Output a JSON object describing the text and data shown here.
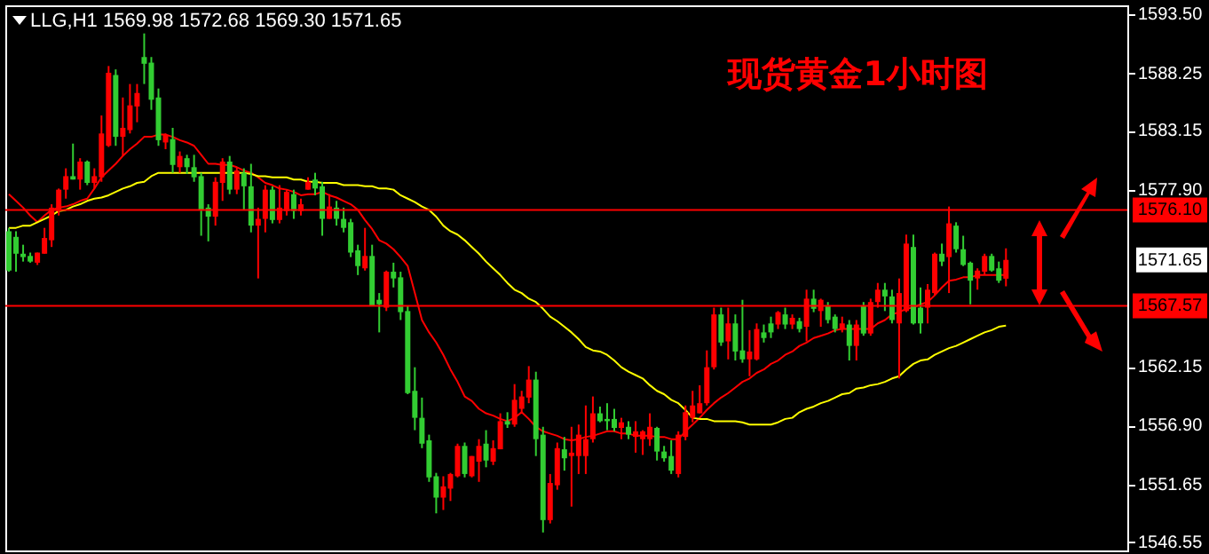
{
  "chart_data": {
    "type": "candlestick",
    "title": "现货黄金1小时图",
    "annotations": [
      "LLG,H1  1569.98 1572.68 1569.30 1571.65",
      "1571.65"
    ],
    "categories": [
      null,
      null,
      null,
      null,
      null,
      null,
      null,
      null,
      null,
      null,
      null,
      null,
      null,
      null,
      null,
      null,
      null,
      null,
      null,
      null,
      null,
      null,
      null,
      null,
      null,
      null,
      null,
      null,
      null,
      null,
      null,
      null,
      null,
      null,
      null,
      null,
      null,
      null,
      null,
      null,
      null,
      null,
      null,
      null,
      null,
      null,
      null,
      null,
      null,
      null,
      null,
      null,
      null,
      null,
      null,
      null,
      null,
      null,
      null,
      null,
      null,
      null,
      null,
      null,
      null,
      null,
      null,
      null,
      null,
      null,
      null,
      null,
      null,
      null,
      null,
      null,
      null,
      null,
      null,
      null,
      null,
      null,
      null,
      null,
      null,
      null,
      null,
      null,
      null,
      null,
      null,
      null,
      null,
      null,
      null,
      null,
      null,
      null,
      null,
      null,
      null,
      null,
      null,
      null,
      null,
      null,
      null,
      null,
      null,
      null,
      null,
      null,
      null,
      null,
      null,
      null,
      null,
      null,
      null,
      null,
      null,
      null,
      null,
      null,
      null,
      null,
      null,
      null,
      null,
      null,
      null,
      null,
      null,
      null,
      null,
      null,
      null,
      null,
      null,
      null,
      null
    ],
    "ohlc": [
      [
        1574.2,
        1574.5,
        1570.6,
        1570.7
      ],
      [
        1573.7,
        1574.2,
        1570.6,
        1572.2
      ],
      [
        1572.2,
        1573.0,
        1571.5,
        1571.9
      ],
      [
        1572.0,
        1572.3,
        1571.4,
        1571.5
      ],
      [
        1571.4,
        1572.3,
        1571.2,
        1572.3
      ],
      [
        1572.2,
        1574.5,
        1572.2,
        1573.6
      ],
      [
        1573.4,
        1576.6,
        1572.8,
        1576.3
      ],
      [
        1576.0,
        1578.0,
        1575.6,
        1577.9
      ],
      [
        1577.9,
        1579.8,
        1577.1,
        1579.1
      ],
      [
        1579.1,
        1582.0,
        1578.8,
        1578.8
      ],
      [
        1578.8,
        1580.7,
        1577.9,
        1580.4
      ],
      [
        1580.4,
        1580.5,
        1578.3,
        1578.5
      ],
      [
        1578.5,
        1579.8,
        1578.0,
        1579.1
      ],
      [
        1579.0,
        1584.5,
        1578.6,
        1582.9
      ],
      [
        1581.8,
        1588.9,
        1581.7,
        1588.3
      ],
      [
        1588.1,
        1588.6,
        1581.8,
        1582.6
      ],
      [
        1582.6,
        1586.1,
        1580.9,
        1583.4
      ],
      [
        1583.2,
        1587.3,
        1582.9,
        1585.4
      ],
      [
        1585.3,
        1587.3,
        1583.9,
        1586.5
      ],
      [
        1589.7,
        1591.8,
        1587.3,
        1589.1
      ],
      [
        1589.2,
        1589.7,
        1585.0,
        1585.9
      ],
      [
        1586.1,
        1586.9,
        1581.8,
        1582.3
      ],
      [
        1582.1,
        1582.9,
        1581.5,
        1582.8
      ],
      [
        1582.4,
        1583.4,
        1579.4,
        1580.1
      ],
      [
        1579.9,
        1581.3,
        1579.4,
        1580.9
      ],
      [
        1580.7,
        1581.0,
        1579.3,
        1579.9
      ],
      [
        1579.9,
        1581.0,
        1578.6,
        1579.0
      ],
      [
        1579.1,
        1579.4,
        1573.8,
        1576.1
      ],
      [
        1576.3,
        1576.6,
        1573.3,
        1575.5
      ],
      [
        1575.5,
        1579.0,
        1574.7,
        1578.6
      ],
      [
        1578.5,
        1580.7,
        1576.9,
        1580.4
      ],
      [
        1580.4,
        1580.9,
        1577.5,
        1577.9
      ],
      [
        1577.9,
        1579.9,
        1577.5,
        1579.6
      ],
      [
        1579.4,
        1579.8,
        1576.1,
        1578.2
      ],
      [
        1578.2,
        1580.2,
        1574.1,
        1574.7
      ],
      [
        1574.7,
        1576.3,
        1570.0,
        1575.3
      ],
      [
        1575.3,
        1578.3,
        1574.1,
        1577.9
      ],
      [
        1577.9,
        1578.2,
        1574.9,
        1575.2
      ],
      [
        1575.2,
        1578.3,
        1574.9,
        1576.3
      ],
      [
        1576.0,
        1577.9,
        1575.6,
        1577.7
      ],
      [
        1577.5,
        1577.9,
        1575.3,
        1576.0
      ],
      [
        1576.0,
        1577.1,
        1575.6,
        1576.6
      ],
      [
        1577.9,
        1579.0,
        1577.9,
        1578.6
      ],
      [
        1578.8,
        1579.4,
        1577.4,
        1578.0
      ],
      [
        1578.2,
        1578.6,
        1573.8,
        1575.3
      ],
      [
        1575.3,
        1577.5,
        1575.3,
        1576.4
      ],
      [
        1576.3,
        1576.9,
        1574.7,
        1575.3
      ],
      [
        1575.3,
        1576.3,
        1574.1,
        1574.5
      ],
      [
        1575.0,
        1575.3,
        1571.9,
        1572.3
      ],
      [
        1572.5,
        1573.0,
        1570.3,
        1571.1
      ],
      [
        1570.9,
        1574.5,
        1570.7,
        1572.0
      ],
      [
        1572.0,
        1573.0,
        1567.6,
        1567.6
      ],
      [
        1568.1,
        1568.7,
        1565.2,
        1567.7
      ],
      [
        1567.4,
        1570.7,
        1567.1,
        1570.6
      ],
      [
        1570.6,
        1571.4,
        1569.2,
        1570.0
      ],
      [
        1570.1,
        1570.6,
        1566.3,
        1567.0
      ],
      [
        1567.1,
        1567.6,
        1559.7,
        1559.8
      ],
      [
        1560.0,
        1562.1,
        1556.5,
        1557.6
      ],
      [
        1557.6,
        1559.4,
        1554.9,
        1555.3
      ],
      [
        1555.6,
        1556.1,
        1551.9,
        1552.3
      ],
      [
        1552.4,
        1552.7,
        1549.1,
        1550.5
      ],
      [
        1550.5,
        1552.4,
        1549.4,
        1551.5
      ],
      [
        1551.3,
        1552.7,
        1550.2,
        1552.6
      ],
      [
        1552.4,
        1555.3,
        1552.3,
        1555.1
      ],
      [
        1555.1,
        1555.4,
        1552.3,
        1552.6
      ],
      [
        1552.4,
        1554.2,
        1552.3,
        1554.2
      ],
      [
        1553.7,
        1555.7,
        1551.9,
        1555.1
      ],
      [
        1555.3,
        1556.5,
        1553.2,
        1553.8
      ],
      [
        1553.7,
        1555.6,
        1553.4,
        1554.9
      ],
      [
        1554.8,
        1558.0,
        1554.8,
        1557.3
      ],
      [
        1557.3,
        1558.1,
        1556.7,
        1557.0
      ],
      [
        1557.0,
        1560.6,
        1556.8,
        1559.2
      ],
      [
        1558.4,
        1560.0,
        1558.1,
        1559.5
      ],
      [
        1559.4,
        1562.2,
        1558.9,
        1561.0
      ],
      [
        1561.0,
        1561.7,
        1554.2,
        1555.7
      ],
      [
        1556.1,
        1556.8,
        1547.4,
        1548.5
      ],
      [
        1548.5,
        1552.6,
        1548.2,
        1551.8
      ],
      [
        1551.6,
        1555.4,
        1551.2,
        1554.9
      ],
      [
        1554.8,
        1555.9,
        1552.9,
        1554.0
      ],
      [
        1554.2,
        1556.8,
        1549.7,
        1554.5
      ],
      [
        1554.2,
        1557.0,
        1552.6,
        1556.1
      ],
      [
        1554.2,
        1558.7,
        1552.6,
        1555.7
      ],
      [
        1555.7,
        1559.5,
        1555.4,
        1558.0
      ],
      [
        1558.0,
        1558.6,
        1557.2,
        1557.3
      ],
      [
        1557.5,
        1558.9,
        1556.5,
        1557.3
      ],
      [
        1557.5,
        1558.4,
        1556.4,
        1556.7
      ],
      [
        1556.7,
        1557.6,
        1555.7,
        1557.2
      ],
      [
        1556.8,
        1557.3,
        1555.7,
        1556.1
      ],
      [
        1555.9,
        1557.3,
        1554.5,
        1556.4
      ],
      [
        1555.7,
        1556.5,
        1554.3,
        1556.4
      ],
      [
        1555.7,
        1558.0,
        1555.1,
        1556.8
      ],
      [
        1556.7,
        1556.8,
        1553.8,
        1554.6
      ],
      [
        1554.6,
        1555.1,
        1553.7,
        1554.0
      ],
      [
        1554.2,
        1555.6,
        1552.6,
        1552.9
      ],
      [
        1552.6,
        1556.4,
        1552.3,
        1556.1
      ],
      [
        1555.9,
        1558.7,
        1555.6,
        1558.1
      ],
      [
        1557.6,
        1560.0,
        1557.2,
        1558.7
      ],
      [
        1558.0,
        1560.5,
        1558.0,
        1558.9
      ],
      [
        1558.9,
        1563.6,
        1558.7,
        1562.1
      ],
      [
        1562.1,
        1567.4,
        1561.9,
        1566.8
      ],
      [
        1566.8,
        1567.4,
        1564.0,
        1564.3
      ],
      [
        1564.4,
        1567.4,
        1562.8,
        1566.0
      ],
      [
        1566.0,
        1566.8,
        1562.7,
        1563.5
      ],
      [
        1563.6,
        1568.1,
        1562.5,
        1562.8
      ],
      [
        1562.8,
        1565.4,
        1561.3,
        1563.5
      ],
      [
        1562.8,
        1566.0,
        1562.7,
        1565.5
      ],
      [
        1565.2,
        1565.9,
        1564.3,
        1564.7
      ],
      [
        1566.0,
        1566.6,
        1564.7,
        1565.2
      ],
      [
        1565.9,
        1567.1,
        1565.5,
        1567.0
      ],
      [
        1566.8,
        1567.4,
        1565.5,
        1565.9
      ],
      [
        1565.9,
        1566.8,
        1565.5,
        1566.5
      ],
      [
        1566.2,
        1566.5,
        1565.2,
        1565.5
      ],
      [
        1565.7,
        1569.0,
        1564.4,
        1568.2
      ],
      [
        1568.2,
        1569.0,
        1567.0,
        1567.3
      ],
      [
        1567.1,
        1568.2,
        1565.7,
        1568.1
      ],
      [
        1567.6,
        1567.9,
        1566.0,
        1566.3
      ],
      [
        1566.6,
        1566.8,
        1565.2,
        1565.5
      ],
      [
        1565.5,
        1566.6,
        1565.2,
        1566.0
      ],
      [
        1565.9,
        1566.3,
        1562.7,
        1564.0
      ],
      [
        1564.0,
        1566.3,
        1562.7,
        1565.9
      ],
      [
        1567.6,
        1567.9,
        1564.9,
        1565.1
      ],
      [
        1565.1,
        1568.2,
        1564.9,
        1567.9
      ],
      [
        1567.9,
        1569.6,
        1567.4,
        1569.0
      ],
      [
        1569.0,
        1569.6,
        1567.1,
        1568.4
      ],
      [
        1568.4,
        1569.0,
        1566.0,
        1566.3
      ],
      [
        1566.0,
        1570.0,
        1561.1,
        1568.7
      ],
      [
        1567.1,
        1573.9,
        1567.0,
        1573.1
      ],
      [
        1572.8,
        1573.9,
        1565.9,
        1566.0
      ],
      [
        1567.4,
        1569.2,
        1565.1,
        1566.0
      ],
      [
        1567.4,
        1569.5,
        1566.0,
        1569.0
      ],
      [
        1568.7,
        1572.3,
        1568.5,
        1572.2
      ],
      [
        1572.2,
        1573.1,
        1571.1,
        1571.5
      ],
      [
        1571.9,
        1576.4,
        1568.7,
        1574.9
      ],
      [
        1574.7,
        1575.0,
        1572.3,
        1572.6
      ],
      [
        1572.6,
        1573.8,
        1571.1,
        1571.2
      ],
      [
        1571.4,
        1571.5,
        1567.7,
        1569.8
      ],
      [
        1570.0,
        1570.9,
        1569.0,
        1570.7
      ],
      [
        1570.6,
        1572.2,
        1570.3,
        1572.0
      ],
      [
        1572.0,
        1572.2,
        1570.6,
        1570.7
      ],
      [
        1570.9,
        1571.5,
        1569.6,
        1569.8
      ],
      [
        1569.98,
        1572.68,
        1569.3,
        1571.65
      ]
    ],
    "colors": [
      "#32cd32",
      "#32cd32",
      "#32cd32",
      "#32cd32",
      "#ff0000",
      "#ff0000",
      "#ff0000",
      "#ff0000",
      "#ff0000",
      "#32cd32",
      "#ff0000",
      "#32cd32",
      "#ff0000",
      "#ff0000",
      "#ff0000",
      "#32cd32",
      "#ff0000",
      "#ff0000",
      "#ff0000",
      "#32cd32",
      "#32cd32",
      "#32cd32",
      "#ff0000",
      "#32cd32",
      "#ff0000",
      "#32cd32",
      "#32cd32",
      "#32cd32",
      "#32cd32",
      "#ff0000",
      "#ff0000",
      "#32cd32",
      "#ff0000",
      "#32cd32",
      "#32cd32",
      "#ff0000",
      "#ff0000",
      "#32cd32",
      "#ff0000",
      "#ff0000",
      "#32cd32",
      "#ff0000",
      "#ff0000",
      "#32cd32",
      "#32cd32",
      "#ff0000",
      "#32cd32",
      "#32cd32",
      "#32cd32",
      "#32cd32",
      "#ff0000",
      "#32cd32",
      "#32cd32",
      "#ff0000",
      "#32cd32",
      "#32cd32",
      "#32cd32",
      "#32cd32",
      "#32cd32",
      "#32cd32",
      "#32cd32",
      "#ff0000",
      "#ff0000",
      "#ff0000",
      "#32cd32",
      "#ff0000",
      "#ff0000",
      "#32cd32",
      "#ff0000",
      "#ff0000",
      "#32cd32",
      "#ff0000",
      "#ff0000",
      "#ff0000",
      "#32cd32",
      "#32cd32",
      "#ff0000",
      "#ff0000",
      "#32cd32",
      "#ff0000",
      "#ff0000",
      "#ff0000",
      "#ff0000",
      "#32cd32",
      "#32cd32",
      "#32cd32",
      "#ff0000",
      "#32cd32",
      "#ff0000",
      "#ff0000",
      "#ff0000",
      "#32cd32",
      "#32cd32",
      "#32cd32",
      "#ff0000",
      "#ff0000",
      "#ff0000",
      "#ff0000",
      "#ff0000",
      "#ff0000",
      "#32cd32",
      "#ff0000",
      "#32cd32",
      "#32cd32",
      "#ff0000",
      "#ff0000",
      "#32cd32",
      "#32cd32",
      "#ff0000",
      "#32cd32",
      "#ff0000",
      "#32cd32",
      "#ff0000",
      "#32cd32",
      "#ff0000",
      "#32cd32",
      "#32cd32",
      "#ff0000",
      "#32cd32",
      "#ff0000",
      "#32cd32",
      "#ff0000",
      "#ff0000",
      "#32cd32",
      "#32cd32",
      "#ff0000",
      "#ff0000",
      "#32cd32",
      "#32cd32",
      "#ff0000",
      "#ff0000",
      "#32cd32",
      "#ff0000",
      "#32cd32",
      "#32cd32",
      "#32cd32",
      "#ff0000",
      "#ff0000",
      "#32cd32",
      "#32cd32",
      "#ff0000"
    ],
    "series": [
      {
        "type": "line",
        "color": "#ff0000",
        "values": [
          1577.5,
          1576.9,
          1576.3,
          1575.6,
          1575.0,
          1575.6,
          1576.1,
          1576.3,
          1576.4,
          1576.6,
          1576.9,
          1577.1,
          1578.0,
          1579.0,
          1579.6,
          1580.2,
          1580.9,
          1581.5,
          1582.0,
          1582.6,
          1582.6,
          1582.8,
          1582.8,
          1582.6,
          1582.3,
          1582.1,
          1581.8,
          1581.0,
          1580.2,
          1580.2,
          1580.1,
          1580.1,
          1579.9,
          1579.6,
          1579.4,
          1579.0,
          1578.5,
          1578.3,
          1578.0,
          1577.9,
          1577.7,
          1577.4,
          1577.5,
          1577.5,
          1577.7,
          1577.4,
          1577.2,
          1576.9,
          1576.6,
          1576.1,
          1575.2,
          1574.4,
          1573.4,
          1573.1,
          1572.6,
          1571.9,
          1571.1,
          1568.7,
          1566.3,
          1565.2,
          1564.3,
          1563.2,
          1561.9,
          1560.8,
          1559.5,
          1559.1,
          1558.4,
          1558.0,
          1557.8,
          1557.5,
          1557.3,
          1557.6,
          1558.1,
          1557.5,
          1556.8,
          1556.4,
          1556.2,
          1556.0,
          1555.7,
          1555.6,
          1555.7,
          1555.9,
          1556.0,
          1556.2,
          1556.4,
          1556.4,
          1556.2,
          1556.2,
          1556.0,
          1556.0,
          1556.0,
          1555.9,
          1555.9,
          1555.7,
          1555.7,
          1556.4,
          1557.0,
          1557.6,
          1558.3,
          1558.9,
          1559.4,
          1559.8,
          1560.3,
          1560.8,
          1561.1,
          1561.6,
          1561.9,
          1562.4,
          1562.7,
          1563.2,
          1563.5,
          1564.0,
          1564.3,
          1564.7,
          1564.9,
          1565.1,
          1565.4,
          1565.5,
          1565.5,
          1565.5,
          1565.5,
          1565.5,
          1566.0,
          1566.3,
          1566.8,
          1567.0,
          1567.3,
          1567.4,
          1567.7,
          1567.9,
          1568.5,
          1569.2,
          1569.8,
          1569.9,
          1570.1,
          1570.1,
          1570.3,
          1570.3,
          1570.3,
          1570.3,
          1570.3
        ]
      },
      {
        "type": "line",
        "color": "#ffff00",
        "values": [
          1574.5,
          1574.5,
          1574.7,
          1574.7,
          1575.0,
          1575.3,
          1575.6,
          1576.0,
          1576.1,
          1576.4,
          1576.6,
          1576.9,
          1577.1,
          1577.2,
          1577.4,
          1577.7,
          1578.0,
          1578.2,
          1578.5,
          1578.6,
          1579.1,
          1579.4,
          1579.4,
          1579.4,
          1579.4,
          1579.4,
          1579.4,
          1579.4,
          1579.4,
          1579.4,
          1579.4,
          1579.4,
          1579.4,
          1579.4,
          1579.3,
          1579.1,
          1579.1,
          1579.0,
          1579.0,
          1579.0,
          1578.8,
          1578.8,
          1578.6,
          1578.6,
          1578.5,
          1578.5,
          1578.5,
          1578.3,
          1578.3,
          1578.3,
          1578.2,
          1578.2,
          1578.0,
          1578.0,
          1577.9,
          1577.4,
          1577.1,
          1576.8,
          1576.4,
          1576.1,
          1575.5,
          1574.7,
          1574.2,
          1573.9,
          1573.4,
          1572.8,
          1572.2,
          1571.5,
          1570.9,
          1570.3,
          1569.6,
          1569.0,
          1568.7,
          1568.2,
          1567.9,
          1567.3,
          1566.6,
          1566.2,
          1565.7,
          1565.2,
          1564.6,
          1563.9,
          1563.6,
          1563.5,
          1563.2,
          1562.7,
          1562.1,
          1561.7,
          1561.4,
          1561.1,
          1560.5,
          1560.0,
          1559.7,
          1559.2,
          1558.9,
          1558.3,
          1557.6,
          1557.5,
          1557.5,
          1557.3,
          1557.3,
          1557.3,
          1557.3,
          1557.2,
          1557.0,
          1557.0,
          1557.0,
          1557.0,
          1557.2,
          1557.5,
          1557.6,
          1558.1,
          1558.4,
          1558.6,
          1558.9,
          1559.1,
          1559.4,
          1559.7,
          1559.8,
          1560.2,
          1560.3,
          1560.5,
          1560.6,
          1560.8,
          1561.1,
          1561.3,
          1561.9,
          1562.4,
          1562.7,
          1562.8,
          1563.2,
          1563.5,
          1563.8,
          1564.0,
          1564.3,
          1564.6,
          1564.9,
          1565.2,
          1565.4,
          1565.7,
          1565.8
        ]
      }
    ],
    "ylim": [
      1545.8,
      1594.3
    ],
    "yticks": [
      {
        "value": 1593.5,
        "label": "1593.50"
      },
      {
        "value": 1588.25,
        "label": "1588.25"
      },
      {
        "value": 1583.15,
        "label": "1583.15"
      },
      {
        "value": 1577.9,
        "label": "1577.90"
      },
      {
        "value": 1562.15,
        "label": "1562.15"
      },
      {
        "value": 1556.9,
        "label": "1556.90"
      },
      {
        "value": 1551.65,
        "label": "1551.65"
      },
      {
        "value": 1546.55,
        "label": "1546.55"
      }
    ],
    "ref_lines": [
      {
        "axis": "y",
        "value": 1576.1,
        "label": "1576.10",
        "color": "#ff0000"
      },
      {
        "axis": "y",
        "value": 1567.57,
        "label": "1567.57",
        "color": "#ff0000"
      }
    ],
    "tick_labels": "y"
  }
}
